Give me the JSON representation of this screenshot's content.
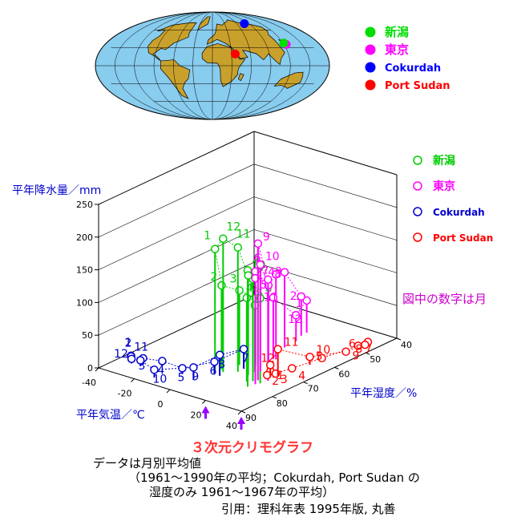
{
  "legend_map": [
    {
      "label": "新潟",
      "color": "#00dd00"
    },
    {
      "label": "東京",
      "color": "#ff00ff"
    },
    {
      "label": "Cokurdah",
      "color": "#0000ff"
    },
    {
      "label": "Port Sudan",
      "color": "#ff0000"
    }
  ],
  "legend_chart": [
    {
      "label": "新潟",
      "color": "#00cc00"
    },
    {
      "label": "東京",
      "color": "#ff00ff"
    },
    {
      "label": "Cokurdah",
      "color": "#0000cc"
    },
    {
      "label": "Port Sudan",
      "color": "#ff0000"
    }
  ],
  "annotation": "図中の数字は月",
  "caption": {
    "title": "３次元クリモグラフ",
    "line1": "データは月別平均値",
    "line2": "（1961～1990年の平均；Cokurdah, Port Sudan の",
    "line3": "湿度のみ 1961～1967年の平均）",
    "line4": "引用：理科年表 1995年版, 丸善"
  },
  "chart_data": {
    "type": "scatter3d",
    "title": "３次元クリモグラフ",
    "axes": {
      "z": {
        "label": "平年降水量／mm",
        "range": [
          0,
          250
        ],
        "ticks": [
          "0",
          "50",
          "100",
          "150",
          "200",
          "250"
        ]
      },
      "x": {
        "label": "平年気温／℃",
        "range": [
          -40,
          40
        ],
        "ticks": [
          "-40",
          "-20",
          "0",
          "20",
          "40"
        ]
      },
      "y": {
        "label": "平年湿度／%",
        "range": [
          40,
          90
        ],
        "ticks": [
          "40",
          "50",
          "60",
          "70",
          "80",
          "90"
        ]
      }
    },
    "series": [
      {
        "name": "新潟",
        "color": "#00cc00",
        "points": [
          {
            "m": "1",
            "t": 2.6,
            "h": 77,
            "p": 188
          },
          {
            "m": "2",
            "t": 2.8,
            "h": 75,
            "p": 128
          },
          {
            "m": "3",
            "t": 5.8,
            "h": 71,
            "p": 114
          },
          {
            "m": "4",
            "t": 11.4,
            "h": 69,
            "p": 102
          },
          {
            "m": "5",
            "t": 16.2,
            "h": 72,
            "p": 102
          },
          {
            "m": "6",
            "t": 20.4,
            "h": 77,
            "p": 128
          },
          {
            "m": "7",
            "t": 24.4,
            "h": 79,
            "p": 178
          },
          {
            "m": "8",
            "t": 26.2,
            "h": 76,
            "p": 130
          },
          {
            "m": "9",
            "t": 22.1,
            "h": 76,
            "p": 156
          },
          {
            "m": "10",
            "t": 16.0,
            "h": 74,
            "p": 152
          },
          {
            "m": "11",
            "t": 10.2,
            "h": 74,
            "p": 190
          },
          {
            "m": "12",
            "t": 5.4,
            "h": 76,
            "p": 204
          }
        ]
      },
      {
        "name": "東京",
        "color": "#ff00ff",
        "points": [
          {
            "m": "1",
            "t": 5.2,
            "h": 49,
            "p": 49
          },
          {
            "m": "2",
            "t": 5.6,
            "h": 51,
            "p": 60
          },
          {
            "m": "3",
            "t": 8.5,
            "h": 58,
            "p": 115
          },
          {
            "m": "4",
            "t": 14.1,
            "h": 64,
            "p": 130
          },
          {
            "m": "5",
            "t": 18.6,
            "h": 69,
            "p": 128
          },
          {
            "m": "6",
            "t": 21.7,
            "h": 75,
            "p": 165
          },
          {
            "m": "7",
            "t": 25.2,
            "h": 77,
            "p": 162
          },
          {
            "m": "8",
            "t": 27.1,
            "h": 74,
            "p": 155
          },
          {
            "m": "9",
            "t": 23.2,
            "h": 75,
            "p": 209
          },
          {
            "m": "10",
            "t": 17.6,
            "h": 71,
            "p": 163
          },
          {
            "m": "11",
            "t": 12.6,
            "h": 64,
            "p": 93
          },
          {
            "m": "12",
            "t": 7.9,
            "h": 54,
            "p": 40
          }
        ]
      },
      {
        "name": "Cokurdah",
        "color": "#0000cc",
        "points": [
          {
            "m": "1",
            "t": -34,
            "h": 83,
            "p": 8
          },
          {
            "m": "2",
            "t": -34,
            "h": 83,
            "p": 7
          },
          {
            "m": "3",
            "t": -29,
            "h": 82,
            "p": 6
          },
          {
            "m": "4",
            "t": -20,
            "h": 81,
            "p": 7
          },
          {
            "m": "5",
            "t": -7,
            "h": 82,
            "p": 9
          },
          {
            "m": "6",
            "t": 4,
            "h": 78,
            "p": 19
          },
          {
            "m": "7",
            "t": 10,
            "h": 72,
            "p": 30
          },
          {
            "m": "8",
            "t": 7,
            "h": 78,
            "p": 32
          },
          {
            "m": "9",
            "t": 1,
            "h": 83,
            "p": 19
          },
          {
            "m": "10",
            "t": -14,
            "h": 87,
            "p": 12
          },
          {
            "m": "11",
            "t": -27,
            "h": 84,
            "p": 9
          },
          {
            "m": "12",
            "t": -32,
            "h": 84,
            "p": 7
          }
        ]
      },
      {
        "name": "Port Sudan",
        "color": "#ff0000",
        "points": [
          {
            "m": "1",
            "t": 23.2,
            "h": 71,
            "p": 5
          },
          {
            "m": "2",
            "t": 23.1,
            "h": 72,
            "p": 1
          },
          {
            "m": "3",
            "t": 24.4,
            "h": 70,
            "p": 0
          },
          {
            "m": "4",
            "t": 26.6,
            "h": 66,
            "p": 1
          },
          {
            "m": "5",
            "t": 29.4,
            "h": 58,
            "p": 1
          },
          {
            "m": "6",
            "t": 32.3,
            "h": 48,
            "p": 0
          },
          {
            "m": "7",
            "t": 34.3,
            "h": 46,
            "p": 3
          },
          {
            "m": "8",
            "t": 34.4,
            "h": 47,
            "p": 1
          },
          {
            "m": "9",
            "t": 32.4,
            "h": 52,
            "p": 0
          },
          {
            "m": "10",
            "t": 29.6,
            "h": 62,
            "p": 12
          },
          {
            "m": "11",
            "t": 27.4,
            "h": 71,
            "p": 42
          },
          {
            "m": "12",
            "t": 24.9,
            "h": 72,
            "p": 18
          }
        ]
      }
    ],
    "markers": [
      "20",
      "40"
    ]
  }
}
